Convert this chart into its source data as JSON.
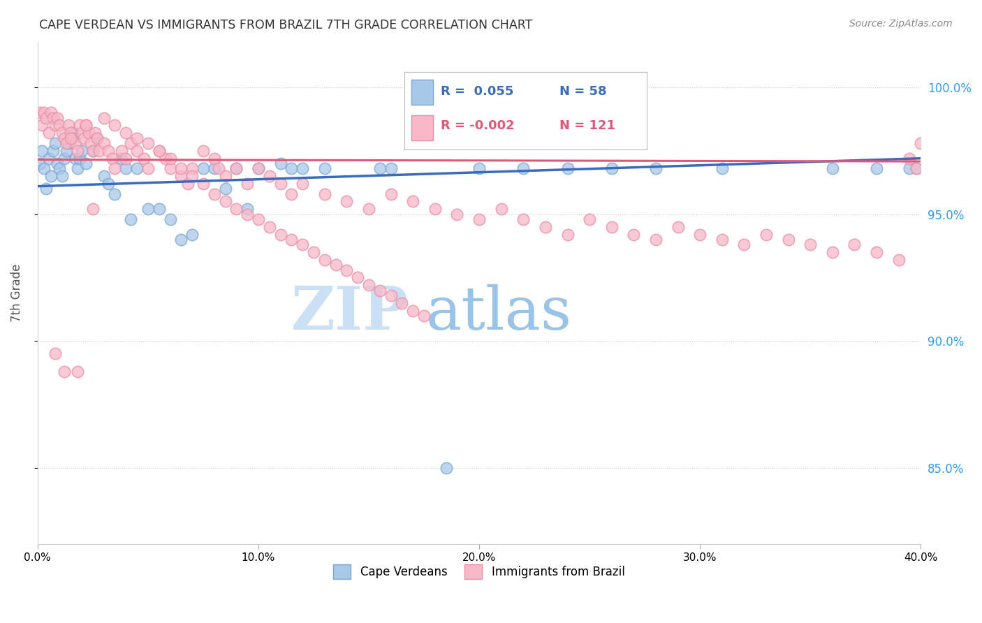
{
  "title": "CAPE VERDEAN VS IMMIGRANTS FROM BRAZIL 7TH GRADE CORRELATION CHART",
  "source": "Source: ZipAtlas.com",
  "ylabel": "7th Grade",
  "ytick_values": [
    0.85,
    0.9,
    0.95,
    1.0
  ],
  "legend_blue_label": "Cape Verdeans",
  "legend_pink_label": "Immigrants from Brazil",
  "legend_blue_r": "R =  0.055",
  "legend_blue_n": "N = 58",
  "legend_pink_r": "R = -0.002",
  "legend_pink_n": "N = 121",
  "watermark_zip": "ZIP",
  "watermark_atlas": "atlas",
  "blue_scatter_x": [
    0.001,
    0.002,
    0.003,
    0.004,
    0.005,
    0.006,
    0.007,
    0.008,
    0.009,
    0.01,
    0.011,
    0.012,
    0.013,
    0.014,
    0.015,
    0.016,
    0.017,
    0.018,
    0.019,
    0.02,
    0.022,
    0.025,
    0.027,
    0.03,
    0.032,
    0.035,
    0.038,
    0.04,
    0.042,
    0.045,
    0.05,
    0.055,
    0.06,
    0.065,
    0.07,
    0.075,
    0.08,
    0.085,
    0.09,
    0.095,
    0.1,
    0.11,
    0.115,
    0.12,
    0.13,
    0.155,
    0.16,
    0.185,
    0.2,
    0.22,
    0.24,
    0.26,
    0.28,
    0.31,
    0.36,
    0.38,
    0.395,
    0.398
  ],
  "blue_scatter_y": [
    0.97,
    0.975,
    0.968,
    0.96,
    0.972,
    0.965,
    0.975,
    0.978,
    0.97,
    0.968,
    0.965,
    0.972,
    0.975,
    0.978,
    0.98,
    0.982,
    0.972,
    0.968,
    0.972,
    0.975,
    0.97,
    0.975,
    0.98,
    0.965,
    0.962,
    0.958,
    0.972,
    0.968,
    0.948,
    0.968,
    0.952,
    0.952,
    0.948,
    0.94,
    0.942,
    0.968,
    0.968,
    0.96,
    0.968,
    0.952,
    0.968,
    0.97,
    0.968,
    0.968,
    0.968,
    0.968,
    0.968,
    0.85,
    0.968,
    0.968,
    0.968,
    0.968,
    0.968,
    0.968,
    0.968,
    0.968,
    0.968,
    0.968
  ],
  "pink_scatter_x": [
    0.001,
    0.002,
    0.003,
    0.004,
    0.005,
    0.006,
    0.007,
    0.008,
    0.009,
    0.01,
    0.011,
    0.012,
    0.013,
    0.014,
    0.015,
    0.016,
    0.017,
    0.018,
    0.019,
    0.02,
    0.021,
    0.022,
    0.023,
    0.024,
    0.025,
    0.026,
    0.027,
    0.028,
    0.03,
    0.032,
    0.034,
    0.035,
    0.038,
    0.04,
    0.042,
    0.045,
    0.048,
    0.05,
    0.055,
    0.058,
    0.06,
    0.065,
    0.068,
    0.07,
    0.075,
    0.08,
    0.082,
    0.085,
    0.09,
    0.095,
    0.1,
    0.105,
    0.11,
    0.115,
    0.12,
    0.13,
    0.14,
    0.15,
    0.16,
    0.17,
    0.18,
    0.19,
    0.2,
    0.21,
    0.22,
    0.23,
    0.24,
    0.25,
    0.26,
    0.27,
    0.28,
    0.29,
    0.3,
    0.31,
    0.32,
    0.33,
    0.34,
    0.35,
    0.36,
    0.37,
    0.38,
    0.39,
    0.395,
    0.398,
    0.4,
    0.008,
    0.012,
    0.015,
    0.018,
    0.022,
    0.025,
    0.03,
    0.035,
    0.04,
    0.045,
    0.05,
    0.055,
    0.06,
    0.065,
    0.07,
    0.075,
    0.08,
    0.085,
    0.09,
    0.095,
    0.1,
    0.105,
    0.11,
    0.115,
    0.12,
    0.125,
    0.13,
    0.135,
    0.14,
    0.145,
    0.15,
    0.155,
    0.16,
    0.165,
    0.17,
    0.175
  ],
  "pink_scatter_y": [
    0.99,
    0.985,
    0.99,
    0.988,
    0.982,
    0.99,
    0.988,
    0.985,
    0.988,
    0.985,
    0.982,
    0.98,
    0.978,
    0.985,
    0.982,
    0.98,
    0.978,
    0.975,
    0.985,
    0.982,
    0.98,
    0.985,
    0.982,
    0.978,
    0.975,
    0.982,
    0.98,
    0.975,
    0.978,
    0.975,
    0.972,
    0.968,
    0.975,
    0.972,
    0.978,
    0.975,
    0.972,
    0.968,
    0.975,
    0.972,
    0.968,
    0.965,
    0.962,
    0.968,
    0.975,
    0.972,
    0.968,
    0.965,
    0.968,
    0.962,
    0.968,
    0.965,
    0.962,
    0.958,
    0.962,
    0.958,
    0.955,
    0.952,
    0.958,
    0.955,
    0.952,
    0.95,
    0.948,
    0.952,
    0.948,
    0.945,
    0.942,
    0.948,
    0.945,
    0.942,
    0.94,
    0.945,
    0.942,
    0.94,
    0.938,
    0.942,
    0.94,
    0.938,
    0.935,
    0.938,
    0.935,
    0.932,
    0.972,
    0.968,
    0.978,
    0.895,
    0.888,
    0.98,
    0.888,
    0.985,
    0.952,
    0.988,
    0.985,
    0.982,
    0.98,
    0.978,
    0.975,
    0.972,
    0.968,
    0.965,
    0.962,
    0.958,
    0.955,
    0.952,
    0.95,
    0.948,
    0.945,
    0.942,
    0.94,
    0.938,
    0.935,
    0.932,
    0.93,
    0.928,
    0.925,
    0.922,
    0.92,
    0.918,
    0.915,
    0.912,
    0.91
  ],
  "blue_line_x": [
    0.0,
    0.4
  ],
  "blue_line_y": [
    0.961,
    0.972
  ],
  "pink_line_x": [
    0.0,
    0.4
  ],
  "pink_line_y": [
    0.9715,
    0.9708
  ],
  "xlim": [
    0.0,
    0.4
  ],
  "ylim": [
    0.82,
    1.018
  ],
  "blue_color": "#a8c8e8",
  "blue_edge_color": "#7aa8d0",
  "blue_line_color": "#3a6bbf",
  "pink_color": "#f8b8c8",
  "pink_edge_color": "#e890a8",
  "pink_line_color": "#e05878",
  "grid_color": "#cccccc",
  "title_color": "#333333",
  "right_tick_color": "#3399ee",
  "watermark_color": "#cce0f5",
  "watermark_atlas_color": "#99c4e8"
}
